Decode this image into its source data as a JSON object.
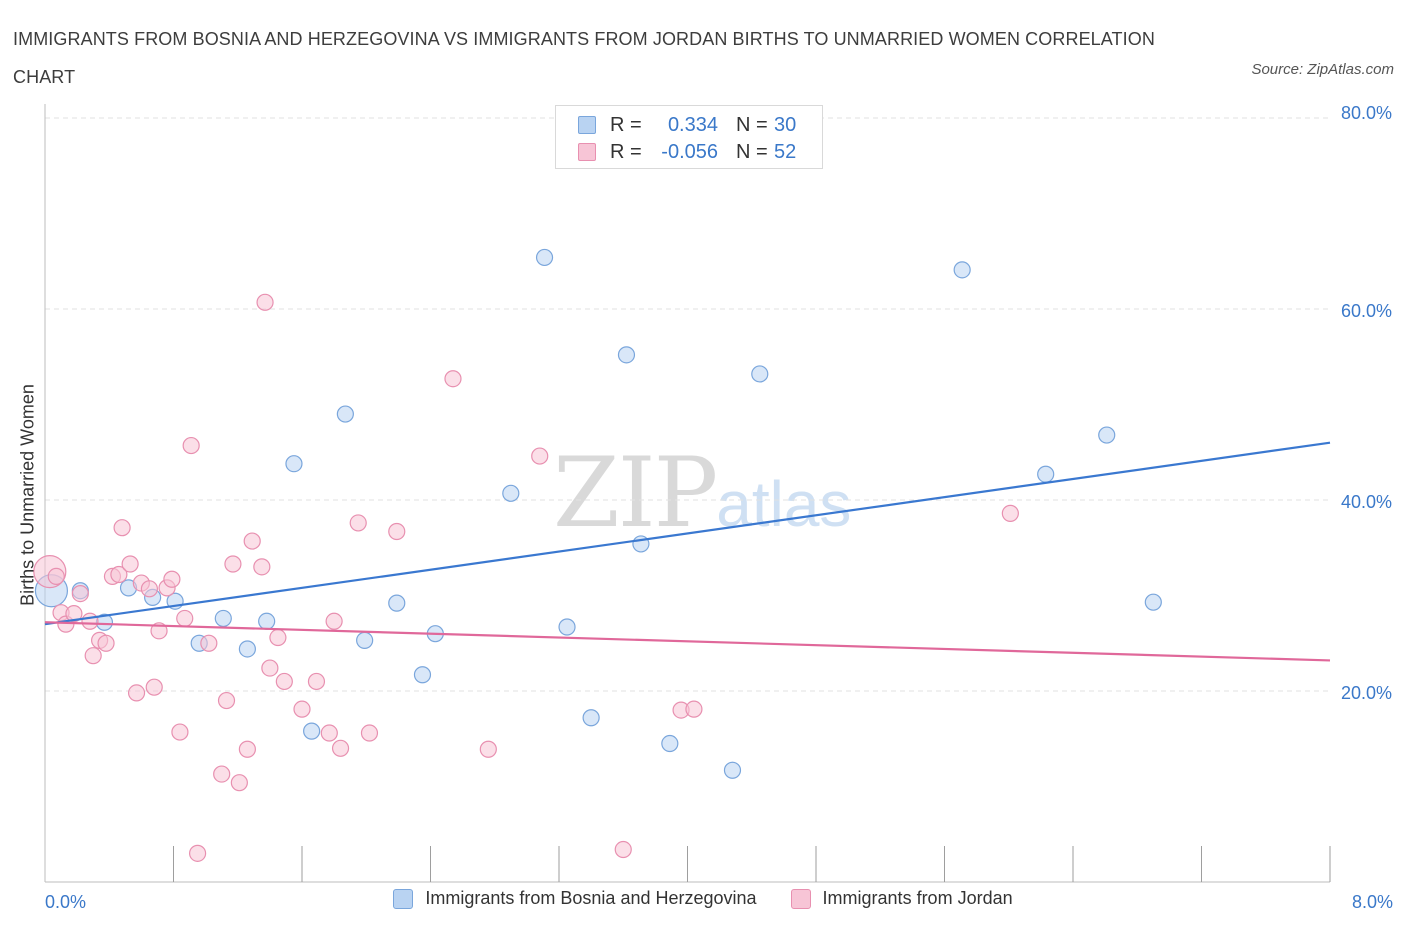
{
  "header": {
    "title": "IMMIGRANTS FROM BOSNIA AND HERZEGOVINA VS IMMIGRANTS FROM JORDAN BIRTHS TO UNMARRIED WOMEN CORRELATION CHART",
    "source": "Source: ZipAtlas.com"
  },
  "watermark": {
    "zip": "ZIP",
    "atlas": "atlas"
  },
  "legend_top": {
    "rows": [
      {
        "r_label": "R =",
        "r_value": "0.334",
        "n_label": "N =",
        "n_value": "30"
      },
      {
        "r_label": "R =",
        "r_value": "-0.056",
        "n_label": "N =",
        "n_value": "52"
      }
    ]
  },
  "colors": {
    "blue_fill": "#b9d3f2",
    "blue_stroke": "#7aa6dc",
    "blue_line": "#3a78d0",
    "pink_fill": "#f7c5d6",
    "pink_stroke": "#e890b0",
    "pink_line": "#e0689a",
    "axis_text": "#3a78c9",
    "grid": "#e2e2e2"
  },
  "chart_data": {
    "type": "scatter",
    "title": "IMMIGRANTS FROM BOSNIA AND HERZEGOVINA VS IMMIGRANTS FROM JORDAN BIRTHS TO UNMARRIED WOMEN CORRELATION CHART",
    "xlabel": "",
    "ylabel": "Births to Unmarried Women",
    "xlim": [
      0,
      8
    ],
    "ylim": [
      0,
      80
    ],
    "x_tick_labels": [
      "0.0%",
      "8.0%"
    ],
    "y_ticks": [
      20,
      40,
      60,
      80
    ],
    "y_tick_labels": [
      "20.0%",
      "40.0%",
      "60.0%",
      "80.0%"
    ],
    "grid": true,
    "legend_position": "bottom",
    "series": [
      {
        "name": "Immigrants from Bosnia and Herzegovina",
        "color": "#7aa6dc",
        "r": 0.334,
        "n": 30,
        "trend": [
          [
            0,
            27.0
          ],
          [
            8,
            46.0
          ]
        ],
        "points": [
          {
            "x": 0.04,
            "y": 30.5,
            "big": true
          },
          {
            "x": 0.22,
            "y": 30.5
          },
          {
            "x": 0.37,
            "y": 27.2
          },
          {
            "x": 0.52,
            "y": 30.8
          },
          {
            "x": 0.67,
            "y": 29.8
          },
          {
            "x": 0.81,
            "y": 29.4
          },
          {
            "x": 0.96,
            "y": 25.0
          },
          {
            "x": 1.11,
            "y": 27.6
          },
          {
            "x": 1.26,
            "y": 24.4
          },
          {
            "x": 1.38,
            "y": 27.3
          },
          {
            "x": 1.55,
            "y": 43.8
          },
          {
            "x": 1.66,
            "y": 15.8
          },
          {
            "x": 1.87,
            "y": 49.0
          },
          {
            "x": 1.99,
            "y": 25.3
          },
          {
            "x": 2.19,
            "y": 29.2
          },
          {
            "x": 2.35,
            "y": 21.7
          },
          {
            "x": 2.43,
            "y": 26.0
          },
          {
            "x": 2.9,
            "y": 40.7
          },
          {
            "x": 3.11,
            "y": 65.4
          },
          {
            "x": 3.25,
            "y": 26.7
          },
          {
            "x": 3.4,
            "y": 17.2
          },
          {
            "x": 3.62,
            "y": 55.2
          },
          {
            "x": 3.71,
            "y": 35.4
          },
          {
            "x": 3.89,
            "y": 14.5
          },
          {
            "x": 4.28,
            "y": 11.7
          },
          {
            "x": 4.45,
            "y": 53.2
          },
          {
            "x": 5.71,
            "y": 64.1
          },
          {
            "x": 6.23,
            "y": 42.7
          },
          {
            "x": 6.61,
            "y": 46.8
          },
          {
            "x": 6.9,
            "y": 29.3
          }
        ]
      },
      {
        "name": "Immigrants from Jordan",
        "color": "#e890b0",
        "r": -0.056,
        "n": 52,
        "trend": [
          [
            0,
            27.2
          ],
          [
            8,
            23.2
          ]
        ],
        "points": [
          {
            "x": 0.03,
            "y": 32.5,
            "big": true
          },
          {
            "x": 0.07,
            "y": 32.0
          },
          {
            "x": 0.1,
            "y": 28.2
          },
          {
            "x": 0.13,
            "y": 27.0
          },
          {
            "x": 0.18,
            "y": 28.1
          },
          {
            "x": 0.22,
            "y": 30.2
          },
          {
            "x": 0.28,
            "y": 27.3
          },
          {
            "x": 0.3,
            "y": 23.7
          },
          {
            "x": 0.34,
            "y": 25.3
          },
          {
            "x": 0.38,
            "y": 25.0
          },
          {
            "x": 0.42,
            "y": 32.0
          },
          {
            "x": 0.46,
            "y": 32.2
          },
          {
            "x": 0.48,
            "y": 37.1
          },
          {
            "x": 0.53,
            "y": 33.3
          },
          {
            "x": 0.57,
            "y": 19.8
          },
          {
            "x": 0.6,
            "y": 31.3
          },
          {
            "x": 0.65,
            "y": 30.7
          },
          {
            "x": 0.68,
            "y": 20.4
          },
          {
            "x": 0.71,
            "y": 26.3
          },
          {
            "x": 0.76,
            "y": 30.8
          },
          {
            "x": 0.79,
            "y": 31.7
          },
          {
            "x": 0.84,
            "y": 15.7
          },
          {
            "x": 0.87,
            "y": 27.6
          },
          {
            "x": 0.91,
            "y": 45.7
          },
          {
            "x": 0.95,
            "y": 3.0
          },
          {
            "x": 1.02,
            "y": 25.0
          },
          {
            "x": 1.1,
            "y": 11.3
          },
          {
            "x": 1.13,
            "y": 19.0
          },
          {
            "x": 1.17,
            "y": 33.3
          },
          {
            "x": 1.21,
            "y": 10.4
          },
          {
            "x": 1.26,
            "y": 13.9
          },
          {
            "x": 1.29,
            "y": 35.7
          },
          {
            "x": 1.35,
            "y": 33.0
          },
          {
            "x": 1.37,
            "y": 60.7
          },
          {
            "x": 1.4,
            "y": 22.4
          },
          {
            "x": 1.45,
            "y": 25.6
          },
          {
            "x": 1.49,
            "y": 21.0
          },
          {
            "x": 1.6,
            "y": 18.1
          },
          {
            "x": 1.69,
            "y": 21.0
          },
          {
            "x": 1.77,
            "y": 15.6
          },
          {
            "x": 1.8,
            "y": 27.3
          },
          {
            "x": 1.84,
            "y": 14.0
          },
          {
            "x": 1.95,
            "y": 37.6
          },
          {
            "x": 2.02,
            "y": 15.6
          },
          {
            "x": 2.19,
            "y": 36.7
          },
          {
            "x": 2.54,
            "y": 52.7
          },
          {
            "x": 2.76,
            "y": 13.9
          },
          {
            "x": 3.08,
            "y": 44.6
          },
          {
            "x": 3.6,
            "y": 3.4
          },
          {
            "x": 3.96,
            "y": 18.0
          },
          {
            "x": 4.04,
            "y": 18.1
          },
          {
            "x": 6.01,
            "y": 38.6
          }
        ]
      }
    ]
  }
}
